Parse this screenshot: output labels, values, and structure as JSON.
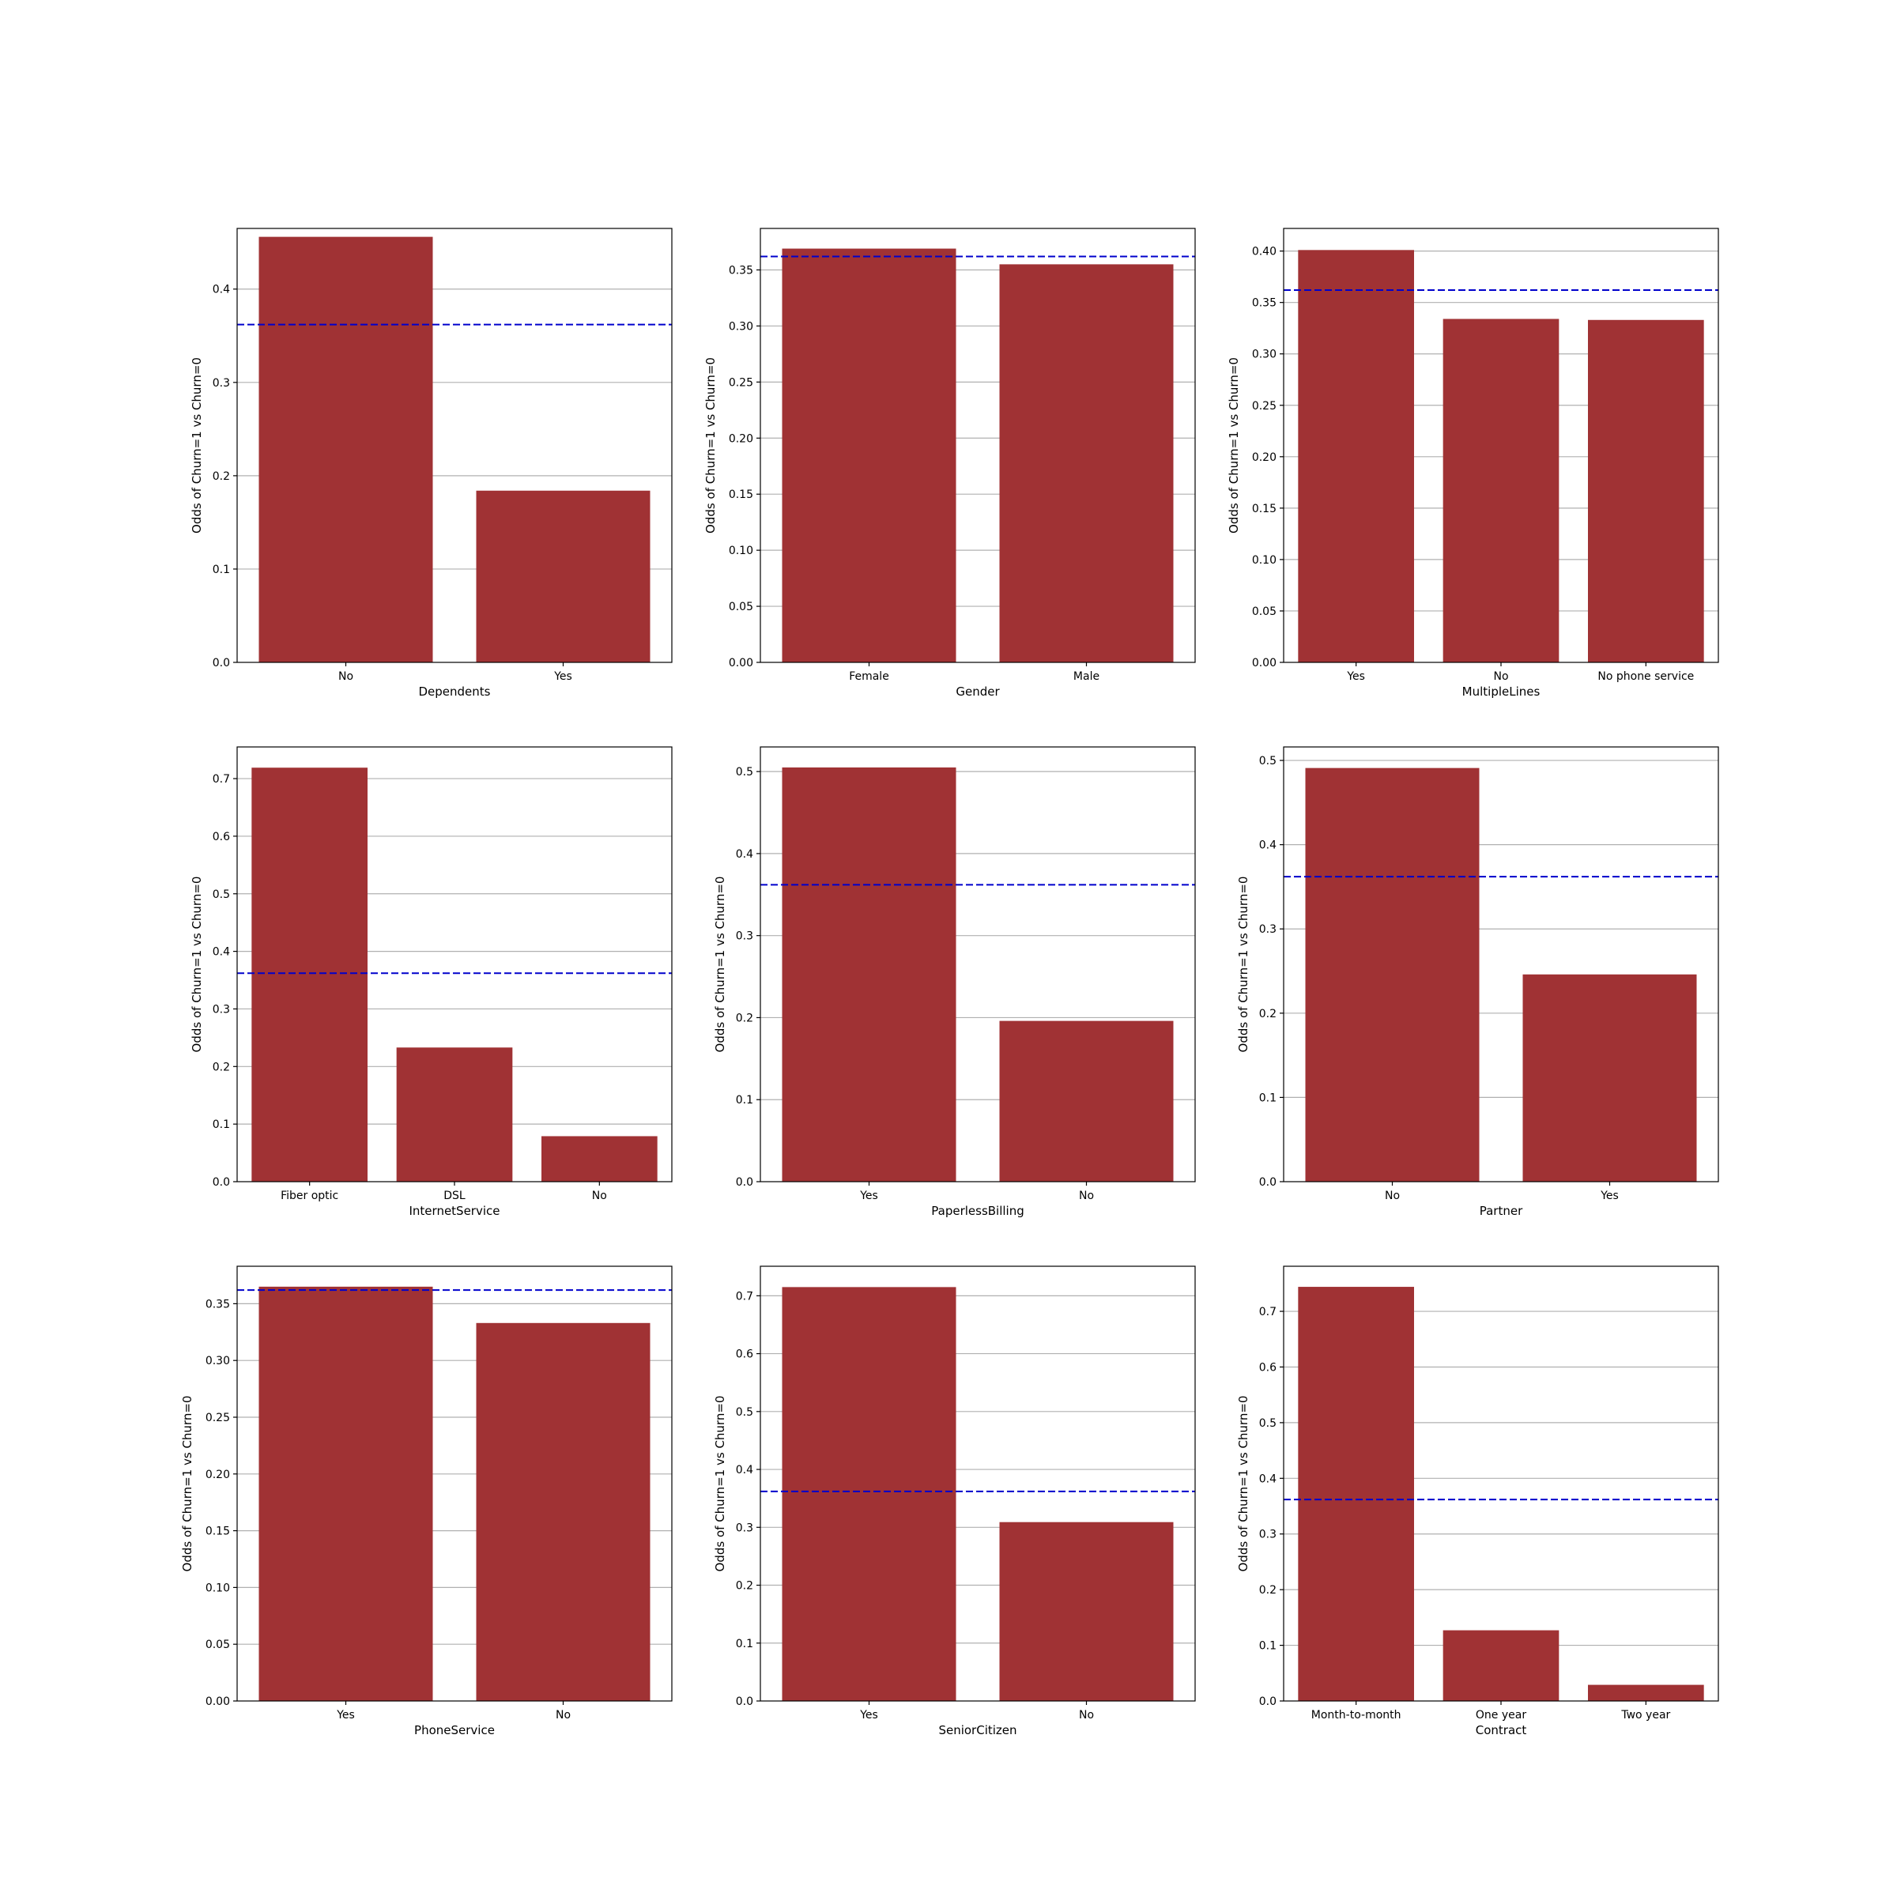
{
  "colors": {
    "bar": "#a03234",
    "reference_line": "#0000cc",
    "grid": "#b0b0b0",
    "axes": "#000000"
  },
  "chart_data": [
    {
      "type": "bar",
      "xlabel": "Dependents",
      "ylabel": "Odds of Churn=1 vs Churn=0",
      "categories": [
        "No",
        "Yes"
      ],
      "values": [
        0.456,
        0.184
      ],
      "ylim": [
        0,
        0.465
      ],
      "yticks": [
        0.0,
        0.1,
        0.2,
        0.3,
        0.4
      ],
      "ytick_labels": [
        "0.0",
        "0.1",
        "0.2",
        "0.3",
        "0.4"
      ],
      "reference_line": 0.362,
      "grid": "horizontal"
    },
    {
      "type": "bar",
      "xlabel": "Gender",
      "ylabel": "Odds of Churn=1 vs Churn=0",
      "categories": [
        "Female",
        "Male"
      ],
      "values": [
        0.369,
        0.355
      ],
      "ylim": [
        0,
        0.387
      ],
      "yticks": [
        0.0,
        0.05,
        0.1,
        0.15,
        0.2,
        0.25,
        0.3,
        0.35
      ],
      "ytick_labels": [
        "0.00",
        "0.05",
        "0.10",
        "0.15",
        "0.20",
        "0.25",
        "0.30",
        "0.35"
      ],
      "reference_line": 0.362,
      "grid": "horizontal"
    },
    {
      "type": "bar",
      "xlabel": "MultipleLines",
      "ylabel": "Odds of Churn=1 vs Churn=0",
      "categories": [
        "Yes",
        "No",
        "No phone service"
      ],
      "values": [
        0.401,
        0.334,
        0.333
      ],
      "ylim": [
        0,
        0.422
      ],
      "yticks": [
        0.0,
        0.05,
        0.1,
        0.15,
        0.2,
        0.25,
        0.3,
        0.35,
        0.4
      ],
      "ytick_labels": [
        "0.00",
        "0.05",
        "0.10",
        "0.15",
        "0.20",
        "0.25",
        "0.30",
        "0.35",
        "0.40"
      ],
      "reference_line": 0.362,
      "grid": "horizontal"
    },
    {
      "type": "bar",
      "xlabel": "InternetService",
      "ylabel": "Odds of Churn=1 vs Churn=0",
      "categories": [
        "Fiber optic",
        "DSL",
        "No"
      ],
      "values": [
        0.719,
        0.233,
        0.079
      ],
      "ylim": [
        0,
        0.755
      ],
      "yticks": [
        0.0,
        0.1,
        0.2,
        0.3,
        0.4,
        0.5,
        0.6,
        0.7
      ],
      "ytick_labels": [
        "0.0",
        "0.1",
        "0.2",
        "0.3",
        "0.4",
        "0.5",
        "0.6",
        "0.7"
      ],
      "reference_line": 0.362,
      "grid": "horizontal"
    },
    {
      "type": "bar",
      "xlabel": "PaperlessBilling",
      "ylabel": "Odds of Churn=1 vs Churn=0",
      "categories": [
        "Yes",
        "No"
      ],
      "values": [
        0.505,
        0.196
      ],
      "ylim": [
        0,
        0.53
      ],
      "yticks": [
        0.0,
        0.1,
        0.2,
        0.3,
        0.4,
        0.5
      ],
      "ytick_labels": [
        "0.0",
        "0.1",
        "0.2",
        "0.3",
        "0.4",
        "0.5"
      ],
      "reference_line": 0.362,
      "grid": "horizontal"
    },
    {
      "type": "bar",
      "xlabel": "Partner",
      "ylabel": "Odds of Churn=1 vs Churn=0",
      "categories": [
        "No",
        "Yes"
      ],
      "values": [
        0.491,
        0.246
      ],
      "ylim": [
        0,
        0.516
      ],
      "yticks": [
        0.0,
        0.1,
        0.2,
        0.3,
        0.4,
        0.5
      ],
      "ytick_labels": [
        "0.0",
        "0.1",
        "0.2",
        "0.3",
        "0.4",
        "0.5"
      ],
      "reference_line": 0.362,
      "grid": "horizontal"
    },
    {
      "type": "bar",
      "xlabel": "PhoneService",
      "ylabel": "Odds of Churn=1 vs Churn=0",
      "categories": [
        "Yes",
        "No"
      ],
      "values": [
        0.365,
        0.333
      ],
      "ylim": [
        0,
        0.383
      ],
      "yticks": [
        0.0,
        0.05,
        0.1,
        0.15,
        0.2,
        0.25,
        0.3,
        0.35
      ],
      "ytick_labels": [
        "0.00",
        "0.05",
        "0.10",
        "0.15",
        "0.20",
        "0.25",
        "0.30",
        "0.35"
      ],
      "reference_line": 0.362,
      "grid": "horizontal"
    },
    {
      "type": "bar",
      "xlabel": "SeniorCitizen",
      "ylabel": "Odds of Churn=1 vs Churn=0",
      "categories": [
        "Yes",
        "No"
      ],
      "values": [
        0.715,
        0.309
      ],
      "ylim": [
        0,
        0.751
      ],
      "yticks": [
        0.0,
        0.1,
        0.2,
        0.3,
        0.4,
        0.5,
        0.6,
        0.7
      ],
      "ytick_labels": [
        "0.0",
        "0.1",
        "0.2",
        "0.3",
        "0.4",
        "0.5",
        "0.6",
        "0.7"
      ],
      "reference_line": 0.362,
      "grid": "horizontal"
    },
    {
      "type": "bar",
      "xlabel": "Contract",
      "ylabel": "Odds of Churn=1 vs Churn=0",
      "categories": [
        "Month-to-month",
        "One year",
        "Two year"
      ],
      "values": [
        0.744,
        0.127,
        0.029
      ],
      "ylim": [
        0,
        0.781
      ],
      "yticks": [
        0.0,
        0.1,
        0.2,
        0.3,
        0.4,
        0.5,
        0.6,
        0.7
      ],
      "ytick_labels": [
        "0.0",
        "0.1",
        "0.2",
        "0.3",
        "0.4",
        "0.5",
        "0.6",
        "0.7"
      ],
      "reference_line": 0.362,
      "grid": "horizontal"
    }
  ]
}
